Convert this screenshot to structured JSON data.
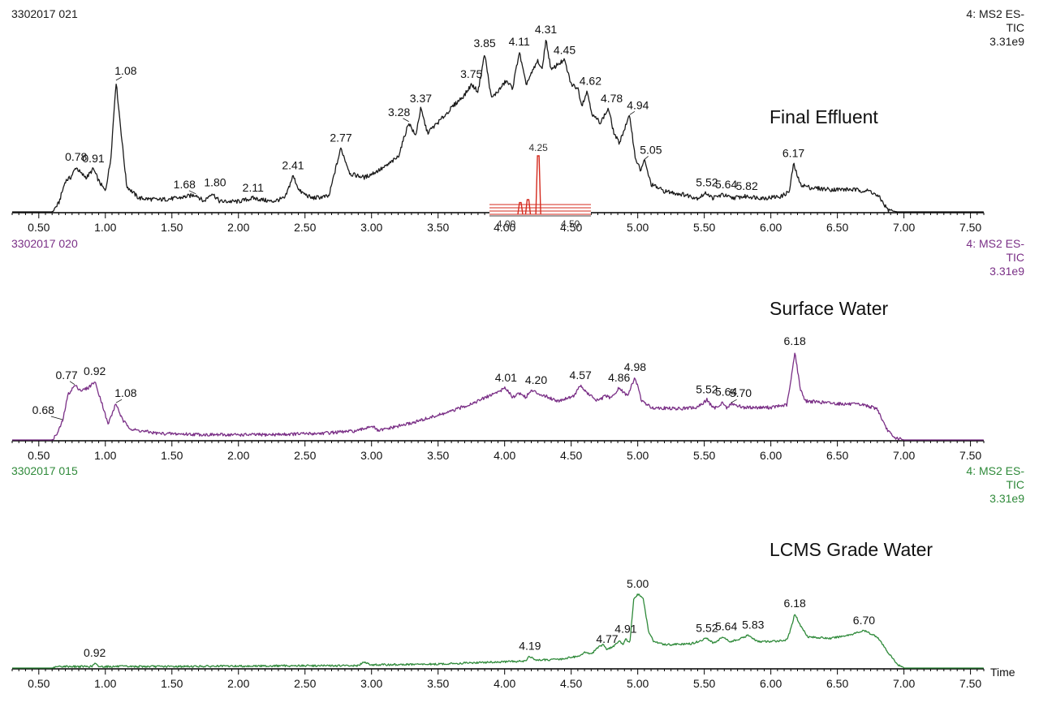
{
  "chart_data": [
    {
      "type": "line",
      "run_id": "3302017 021",
      "header": [
        "4: MS2 ES-",
        "TIC",
        "3.31e9"
      ],
      "title": "Final Effluent",
      "color": "#1a1a1a",
      "xlim": [
        0.3,
        7.6
      ],
      "xticks": [
        "0.50",
        "1.00",
        "1.50",
        "2.00",
        "2.50",
        "3.00",
        "3.50",
        "4.00",
        "4.50",
        "5.00",
        "5.50",
        "6.00",
        "6.50",
        "7.00",
        "7.50"
      ],
      "x_label": "",
      "peak_labels": [
        "0.78",
        "0.91",
        "1.08",
        "1.68",
        "1.80",
        "2.11",
        "2.41",
        "2.77",
        "3.28",
        "3.37",
        "3.75",
        "3.85",
        "4.11",
        "4.31",
        "4.45",
        "4.62",
        "4.78",
        "4.94",
        "5.05",
        "5.52",
        "5.64",
        "5.82",
        "6.17"
      ],
      "profile": [
        [
          0.3,
          0
        ],
        [
          0.6,
          0
        ],
        [
          0.65,
          0.05
        ],
        [
          0.7,
          0.18
        ],
        [
          0.74,
          0.2
        ],
        [
          0.78,
          0.26
        ],
        [
          0.82,
          0.22
        ],
        [
          0.86,
          0.2
        ],
        [
          0.91,
          0.25
        ],
        [
          0.95,
          0.18
        ],
        [
          1.0,
          0.12
        ],
        [
          1.04,
          0.3
        ],
        [
          1.08,
          0.76
        ],
        [
          1.12,
          0.45
        ],
        [
          1.16,
          0.15
        ],
        [
          1.25,
          0.08
        ],
        [
          1.4,
          0.07
        ],
        [
          1.55,
          0.08
        ],
        [
          1.68,
          0.1
        ],
        [
          1.74,
          0.06
        ],
        [
          1.8,
          0.11
        ],
        [
          1.86,
          0.06
        ],
        [
          2.0,
          0.06
        ],
        [
          2.11,
          0.08
        ],
        [
          2.25,
          0.06
        ],
        [
          2.35,
          0.08
        ],
        [
          2.41,
          0.21
        ],
        [
          2.46,
          0.12
        ],
        [
          2.55,
          0.08
        ],
        [
          2.68,
          0.09
        ],
        [
          2.72,
          0.22
        ],
        [
          2.77,
          0.37
        ],
        [
          2.84,
          0.22
        ],
        [
          2.95,
          0.2
        ],
        [
          3.1,
          0.26
        ],
        [
          3.2,
          0.32
        ],
        [
          3.28,
          0.52
        ],
        [
          3.33,
          0.44
        ],
        [
          3.37,
          0.6
        ],
        [
          3.42,
          0.46
        ],
        [
          3.5,
          0.52
        ],
        [
          3.55,
          0.56
        ],
        [
          3.62,
          0.62
        ],
        [
          3.7,
          0.68
        ],
        [
          3.75,
          0.74
        ],
        [
          3.8,
          0.7
        ],
        [
          3.85,
          0.92
        ],
        [
          3.9,
          0.66
        ],
        [
          3.95,
          0.7
        ],
        [
          4.01,
          0.76
        ],
        [
          4.06,
          0.72
        ],
        [
          4.11,
          0.93
        ],
        [
          4.16,
          0.74
        ],
        [
          4.2,
          0.8
        ],
        [
          4.25,
          0.88
        ],
        [
          4.28,
          0.82
        ],
        [
          4.31,
          1.0
        ],
        [
          4.35,
          0.82
        ],
        [
          4.4,
          0.86
        ],
        [
          4.45,
          0.88
        ],
        [
          4.5,
          0.74
        ],
        [
          4.55,
          0.72
        ],
        [
          4.58,
          0.62
        ],
        [
          4.62,
          0.7
        ],
        [
          4.66,
          0.56
        ],
        [
          4.72,
          0.52
        ],
        [
          4.78,
          0.6
        ],
        [
          4.82,
          0.46
        ],
        [
          4.86,
          0.4
        ],
        [
          4.9,
          0.48
        ],
        [
          4.94,
          0.56
        ],
        [
          4.98,
          0.32
        ],
        [
          5.02,
          0.24
        ],
        [
          5.05,
          0.3
        ],
        [
          5.1,
          0.16
        ],
        [
          5.2,
          0.12
        ],
        [
          5.35,
          0.1
        ],
        [
          5.45,
          0.08
        ],
        [
          5.52,
          0.11
        ],
        [
          5.56,
          0.08
        ],
        [
          5.64,
          0.1
        ],
        [
          5.7,
          0.08
        ],
        [
          5.82,
          0.09
        ],
        [
          5.95,
          0.08
        ],
        [
          6.08,
          0.09
        ],
        [
          6.14,
          0.12
        ],
        [
          6.17,
          0.28
        ],
        [
          6.22,
          0.16
        ],
        [
          6.3,
          0.14
        ],
        [
          6.45,
          0.13
        ],
        [
          6.6,
          0.13
        ],
        [
          6.75,
          0.12
        ],
        [
          6.82,
          0.08
        ],
        [
          6.88,
          0.01
        ],
        [
          6.95,
          0
        ],
        [
          7.6,
          0
        ]
      ],
      "inset": {
        "color": "#d42a1e",
        "xticks": [
          "4.00",
          "4.50"
        ],
        "peak_label": "4.25",
        "peaks": [
          [
            4.11,
            0.2
          ],
          [
            4.17,
            0.25
          ],
          [
            4.25,
            1.0
          ]
        ]
      }
    },
    {
      "type": "line",
      "run_id": "3302017 020",
      "header": [
        "4: MS2 ES-",
        "TIC",
        "3.31e9"
      ],
      "title": "Surface Water",
      "color": "#7a2f86",
      "xlim": [
        0.3,
        7.6
      ],
      "xticks": [
        "0.50",
        "1.00",
        "1.50",
        "2.00",
        "2.50",
        "3.00",
        "3.50",
        "4.00",
        "4.50",
        "5.00",
        "5.50",
        "6.00",
        "6.50",
        "7.00",
        "7.50"
      ],
      "x_label": "",
      "peak_labels": [
        "0.68",
        "0.77",
        "0.92",
        "1.08",
        "4.01",
        "4.20",
        "4.57",
        "4.86",
        "4.98",
        "5.52",
        "5.64",
        "5.70",
        "6.18"
      ],
      "profile": [
        [
          0.3,
          0
        ],
        [
          0.6,
          0
        ],
        [
          0.64,
          0.05
        ],
        [
          0.68,
          0.15
        ],
        [
          0.72,
          0.35
        ],
        [
          0.77,
          0.42
        ],
        [
          0.82,
          0.38
        ],
        [
          0.87,
          0.4
        ],
        [
          0.92,
          0.45
        ],
        [
          0.97,
          0.3
        ],
        [
          1.02,
          0.12
        ],
        [
          1.08,
          0.28
        ],
        [
          1.13,
          0.15
        ],
        [
          1.2,
          0.08
        ],
        [
          1.4,
          0.05
        ],
        [
          1.8,
          0.04
        ],
        [
          2.2,
          0.04
        ],
        [
          2.6,
          0.05
        ],
        [
          2.9,
          0.07
        ],
        [
          3.0,
          0.11
        ],
        [
          3.05,
          0.07
        ],
        [
          3.3,
          0.13
        ],
        [
          3.6,
          0.22
        ],
        [
          3.8,
          0.3
        ],
        [
          4.01,
          0.4
        ],
        [
          4.06,
          0.33
        ],
        [
          4.11,
          0.36
        ],
        [
          4.16,
          0.33
        ],
        [
          4.2,
          0.38
        ],
        [
          4.3,
          0.34
        ],
        [
          4.4,
          0.3
        ],
        [
          4.52,
          0.34
        ],
        [
          4.57,
          0.42
        ],
        [
          4.62,
          0.36
        ],
        [
          4.7,
          0.3
        ],
        [
          4.76,
          0.34
        ],
        [
          4.8,
          0.32
        ],
        [
          4.86,
          0.4
        ],
        [
          4.92,
          0.34
        ],
        [
          4.98,
          0.48
        ],
        [
          5.03,
          0.3
        ],
        [
          5.1,
          0.25
        ],
        [
          5.3,
          0.24
        ],
        [
          5.45,
          0.25
        ],
        [
          5.52,
          0.31
        ],
        [
          5.57,
          0.24
        ],
        [
          5.64,
          0.29
        ],
        [
          5.67,
          0.24
        ],
        [
          5.7,
          0.28
        ],
        [
          5.8,
          0.25
        ],
        [
          6.0,
          0.25
        ],
        [
          6.12,
          0.27
        ],
        [
          6.15,
          0.45
        ],
        [
          6.18,
          0.68
        ],
        [
          6.22,
          0.4
        ],
        [
          6.26,
          0.3
        ],
        [
          6.5,
          0.28
        ],
        [
          6.7,
          0.27
        ],
        [
          6.8,
          0.24
        ],
        [
          6.86,
          0.1
        ],
        [
          6.92,
          0.02
        ],
        [
          7.0,
          0
        ],
        [
          7.6,
          0
        ]
      ]
    },
    {
      "type": "line",
      "run_id": "3302017 015",
      "header": [
        "4: MS2 ES-",
        "TIC",
        "3.31e9"
      ],
      "title": "LCMS Grade Water",
      "color": "#2f8a3a",
      "xlim": [
        0.3,
        7.6
      ],
      "xticks": [
        "0.50",
        "1.00",
        "1.50",
        "2.00",
        "2.50",
        "3.00",
        "3.50",
        "4.00",
        "4.50",
        "5.00",
        "5.50",
        "6.00",
        "6.50",
        "7.00",
        "7.50"
      ],
      "x_label": "Time",
      "peak_labels": [
        "0.92",
        "4.19",
        "4.77",
        "4.91",
        "5.00",
        "5.52",
        "5.64",
        "5.83",
        "6.18",
        "6.70"
      ],
      "profile": [
        [
          0.3,
          0
        ],
        [
          0.6,
          0
        ],
        [
          0.65,
          0.02
        ],
        [
          0.9,
          0.02
        ],
        [
          0.92,
          0.06
        ],
        [
          0.95,
          0.02
        ],
        [
          1.5,
          0.02
        ],
        [
          2.5,
          0.03
        ],
        [
          2.9,
          0.03
        ],
        [
          2.95,
          0.08
        ],
        [
          3.0,
          0.04
        ],
        [
          3.5,
          0.05
        ],
        [
          3.8,
          0.07
        ],
        [
          4.0,
          0.08
        ],
        [
          4.15,
          0.09
        ],
        [
          4.19,
          0.15
        ],
        [
          4.23,
          0.1
        ],
        [
          4.4,
          0.11
        ],
        [
          4.55,
          0.15
        ],
        [
          4.6,
          0.2
        ],
        [
          4.65,
          0.18
        ],
        [
          4.7,
          0.26
        ],
        [
          4.74,
          0.3
        ],
        [
          4.77,
          0.24
        ],
        [
          4.82,
          0.28
        ],
        [
          4.86,
          0.35
        ],
        [
          4.89,
          0.3
        ],
        [
          4.91,
          0.37
        ],
        [
          4.94,
          0.32
        ],
        [
          4.97,
          0.88
        ],
        [
          5.0,
          0.95
        ],
        [
          5.04,
          0.9
        ],
        [
          5.08,
          0.48
        ],
        [
          5.12,
          0.34
        ],
        [
          5.2,
          0.3
        ],
        [
          5.4,
          0.31
        ],
        [
          5.52,
          0.38
        ],
        [
          5.57,
          0.32
        ],
        [
          5.64,
          0.4
        ],
        [
          5.69,
          0.34
        ],
        [
          5.75,
          0.36
        ],
        [
          5.83,
          0.42
        ],
        [
          5.9,
          0.34
        ],
        [
          6.0,
          0.34
        ],
        [
          6.12,
          0.36
        ],
        [
          6.15,
          0.5
        ],
        [
          6.18,
          0.7
        ],
        [
          6.22,
          0.55
        ],
        [
          6.28,
          0.4
        ],
        [
          6.45,
          0.38
        ],
        [
          6.6,
          0.43
        ],
        [
          6.7,
          0.48
        ],
        [
          6.8,
          0.4
        ],
        [
          6.88,
          0.2
        ],
        [
          6.95,
          0.05
        ],
        [
          7.0,
          0
        ],
        [
          7.6,
          0
        ]
      ]
    }
  ]
}
